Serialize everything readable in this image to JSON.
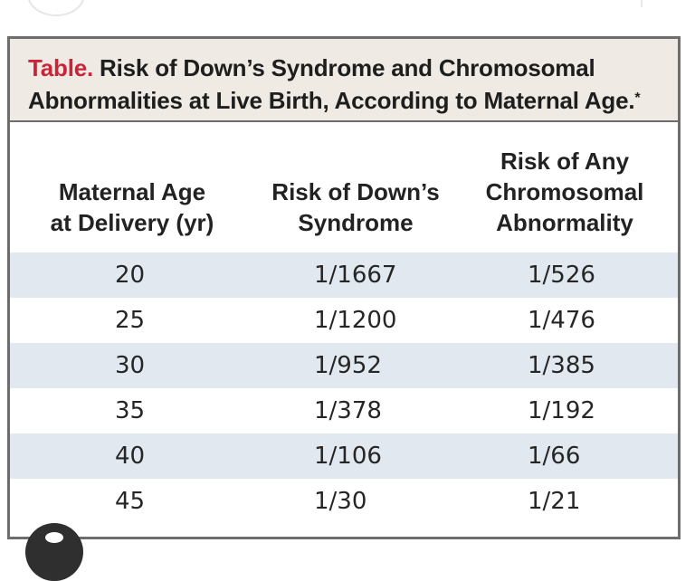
{
  "caption": {
    "prefix": "Table.",
    "title": "Risk of Down’s Syndrome and Chromosomal Abnormalities at Live Birth, According to Maternal Age.",
    "footnote_marker": "*"
  },
  "columns": [
    "Maternal Age\nat Delivery (yr)",
    "Risk of Down’s\nSyndrome",
    "Risk of Any\nChromosomal\nAbnormality"
  ],
  "rows": [
    {
      "age": "20",
      "down": "1/1667",
      "any": "1/526"
    },
    {
      "age": "25",
      "down": "1/1200",
      "any": "1/476"
    },
    {
      "age": "30",
      "down": "1/952",
      "any": "1/385"
    },
    {
      "age": "35",
      "down": "1/378",
      "any": "1/192"
    },
    {
      "age": "40",
      "down": "1/106",
      "any": "1/66"
    },
    {
      "age": "45",
      "down": "1/30",
      "any": "1/21"
    }
  ],
  "colors": {
    "caption_background": "#efebe4",
    "caption_prefix": "#c8253a",
    "row_shading": "#e1e8ef",
    "border": "#6d6d6d"
  }
}
